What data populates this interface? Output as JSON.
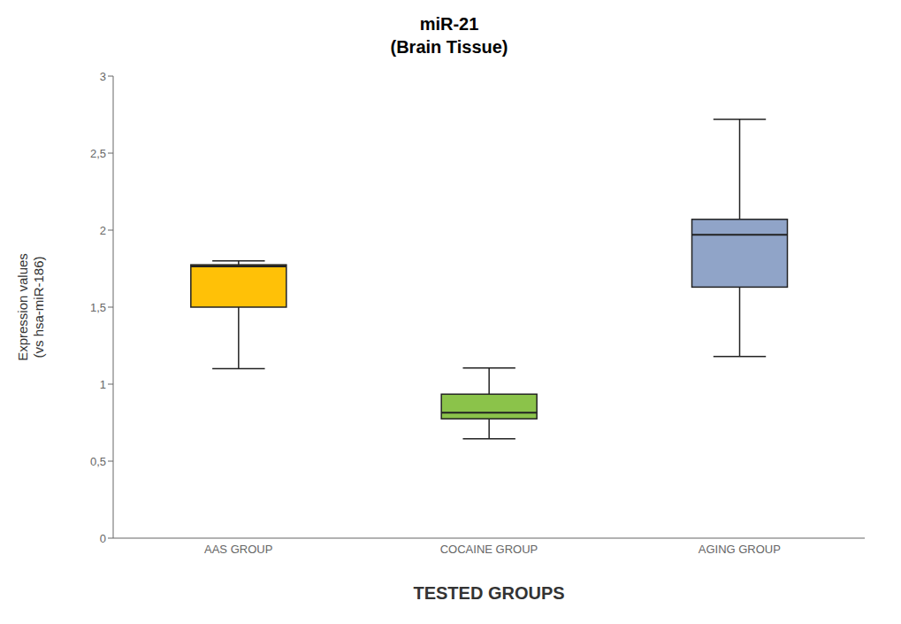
{
  "chart_data": {
    "type": "box",
    "title": "miR-21\n(Brain Tissue)",
    "xlabel": "TESTED GROUPS",
    "ylabel": "Expression values\n(vs hsa-miR-186)",
    "categories": [
      "AAS GROUP",
      "COCAINE GROUP",
      "AGING GROUP"
    ],
    "q1": [
      1.5,
      0.775,
      1.63
    ],
    "median": [
      1.765,
      0.815,
      1.97
    ],
    "q3": [
      1.775,
      0.935,
      2.07
    ],
    "whisker_low": [
      1.1,
      0.645,
      1.18
    ],
    "whisker_high": [
      1.8,
      1.105,
      2.72
    ],
    "colors": [
      "#FFC107",
      "#8BC34A",
      "#90A4C8"
    ],
    "color": "#222222",
    "ylim": [
      0,
      3.0
    ],
    "yticks": [
      0,
      {
        "value": 0.5,
        "label": "0,5"
      },
      1,
      {
        "value": 1.5,
        "label": "1,5"
      },
      2,
      {
        "value": 2.5,
        "label": "2,5"
      },
      3
    ],
    "grid": false
  }
}
